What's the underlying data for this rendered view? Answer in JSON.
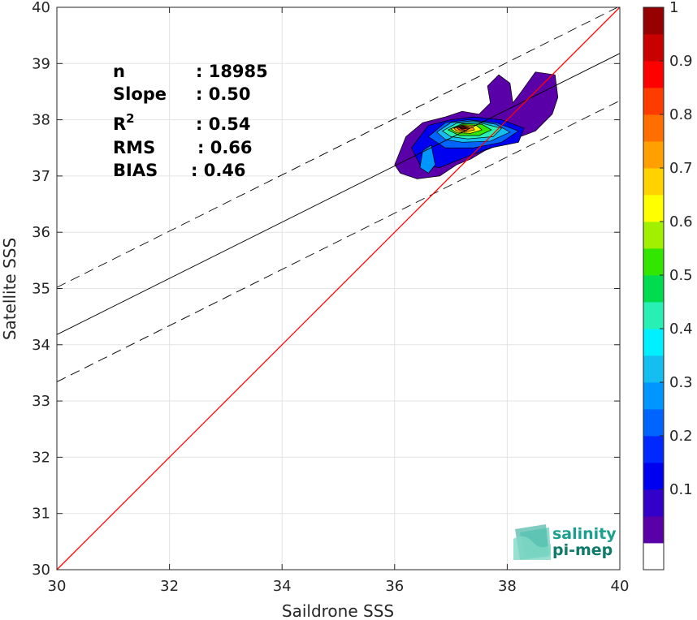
{
  "chart_data": {
    "type": "scatter",
    "subtype": "density-contour",
    "xlabel": "Saildrone SSS",
    "ylabel": "Satellite SSS",
    "xlim": [
      30,
      40
    ],
    "ylim": [
      30,
      40
    ],
    "xticks": [
      "30",
      "32",
      "34",
      "36",
      "38",
      "40"
    ],
    "yticks": [
      "30",
      "31",
      "32",
      "33",
      "34",
      "35",
      "36",
      "37",
      "38",
      "39",
      "40"
    ],
    "grid": true,
    "stats": [
      {
        "label": "n",
        "value": ": 18985"
      },
      {
        "label": "Slope",
        "value": ": 0.50"
      },
      {
        "label": "R",
        "sup": "2",
        "value": ": 0.54"
      },
      {
        "label": "RMS",
        "value": ": 0.66"
      },
      {
        "label": "BIAS",
        "value": ": 0.46"
      }
    ],
    "lines": {
      "identity": {
        "slope": 1,
        "intercept": 0,
        "color": "#ff0000"
      },
      "regression": {
        "slope": 0.5,
        "intercept": 19.18,
        "color": "#000000"
      },
      "band_offset": 0.84
    },
    "density_peak": {
      "x": 37.2,
      "y": 37.85,
      "value": 1.0
    },
    "colorbar": {
      "min": 0,
      "max": 1,
      "ticks": [
        "0.1",
        "0.2",
        "0.3",
        "0.4",
        "0.5",
        "0.6",
        "0.7",
        "0.8",
        "0.9",
        "1"
      ],
      "levels": [
        "#ffffff",
        "#5a00a8",
        "#3200c8",
        "#0000f0",
        "#0028ff",
        "#0064ff",
        "#0096ff",
        "#14bef0",
        "#00f0ff",
        "#28f0b4",
        "#00dc50",
        "#32e600",
        "#a0f000",
        "#ffff00",
        "#ffd200",
        "#ffa000",
        "#ff6e00",
        "#ff3c00",
        "#ff0000",
        "#c80000",
        "#960000"
      ]
    },
    "logo": {
      "line1": "salinity",
      "line2": "pi-mep",
      "color": "#1aa08c"
    }
  }
}
